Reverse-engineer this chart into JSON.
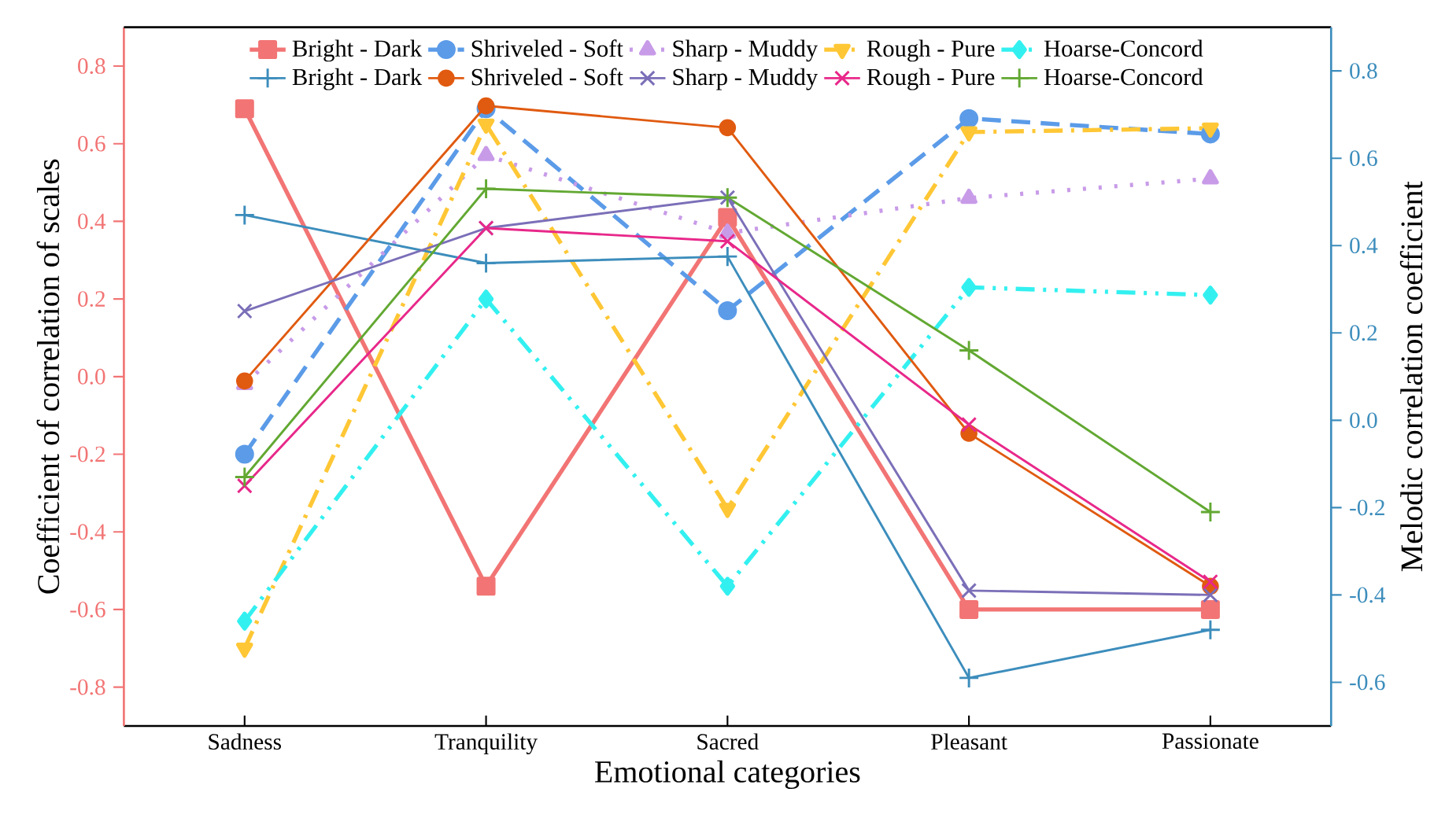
{
  "chart_data": {
    "type": "line",
    "xlabel": "Emotional categories",
    "ylabel": "Coefficient of correlation of scales",
    "y2label": "Melodic correlation coefficient",
    "categories": [
      "Sadness",
      "Tranquility",
      "Sacred",
      "Pleasant",
      "Passionate"
    ],
    "ylim": [
      -0.9,
      0.9
    ],
    "yticks": [
      -0.8,
      -0.6,
      -0.4,
      -0.2,
      {
        "value": 0,
        "label": "0.0"
      },
      0.2,
      0.4,
      0.6,
      0.8
    ],
    "y2lim": [
      -0.7,
      0.9
    ],
    "y2ticks": [
      -0.6,
      -0.4,
      -0.2,
      {
        "value": 0,
        "label": "0.0"
      },
      0.2,
      0.4,
      0.6,
      0.8
    ],
    "legend": "top",
    "series": [
      {
        "name": "Bright - Dark",
        "color": "#f27474",
        "marker": "square",
        "line_style": "solid",
        "values": [
          0.69,
          -0.54,
          0.41,
          -0.6,
          -0.6
        ]
      },
      {
        "name": "Shriveled - Soft",
        "color": "#5b9be8",
        "marker": "circle",
        "line_style": "dashed",
        "values": [
          -0.2,
          0.69,
          0.17,
          0.665,
          0.625
        ]
      },
      {
        "name": "Sharp - Muddy",
        "color": "#c89be8",
        "marker": "triangle",
        "line_style": "dotted",
        "values": [
          -0.02,
          0.57,
          0.37,
          0.46,
          0.51
        ]
      },
      {
        "name": "Rough - Pure",
        "color": "#ffc735",
        "marker": "triangle-down",
        "line_style": "dashdot",
        "values": [
          -0.7,
          0.65,
          -0.34,
          0.63,
          0.64
        ]
      },
      {
        "name": "Hoarse-Concord",
        "color": "#33f0f0",
        "marker": "diamond",
        "line_style": "dashdotdot",
        "values": [
          -0.63,
          0.2,
          -0.54,
          0.23,
          0.21
        ]
      },
      {
        "name": "Bright - Dark",
        "color": "#3c8dbc",
        "marker": "plus",
        "line_style": "solid",
        "axis": "y2",
        "values": [
          0.47,
          0.36,
          0.375,
          -0.59,
          -0.48
        ]
      },
      {
        "name": "Shriveled - Soft",
        "color": "#e05a10",
        "marker": "circle",
        "line_style": "solid",
        "axis": "y2",
        "values": [
          0.09,
          0.72,
          0.67,
          -0.03,
          -0.38
        ]
      },
      {
        "name": "Sharp - Muddy",
        "color": "#7b6fb8",
        "marker": "cross",
        "line_style": "solid",
        "axis": "y2",
        "values": [
          0.25,
          0.44,
          0.51,
          -0.39,
          -0.4
        ]
      },
      {
        "name": "Rough - Pure",
        "color": "#e8288a",
        "marker": "cross",
        "line_style": "solid",
        "axis": "y2",
        "values": [
          -0.15,
          0.44,
          0.41,
          -0.01,
          -0.37
        ]
      },
      {
        "name": "Hoarse-Concord",
        "color": "#62a832",
        "marker": "plus",
        "line_style": "solid",
        "axis": "y2",
        "values": [
          -0.13,
          0.53,
          0.51,
          0.16,
          -0.21
        ]
      }
    ]
  }
}
